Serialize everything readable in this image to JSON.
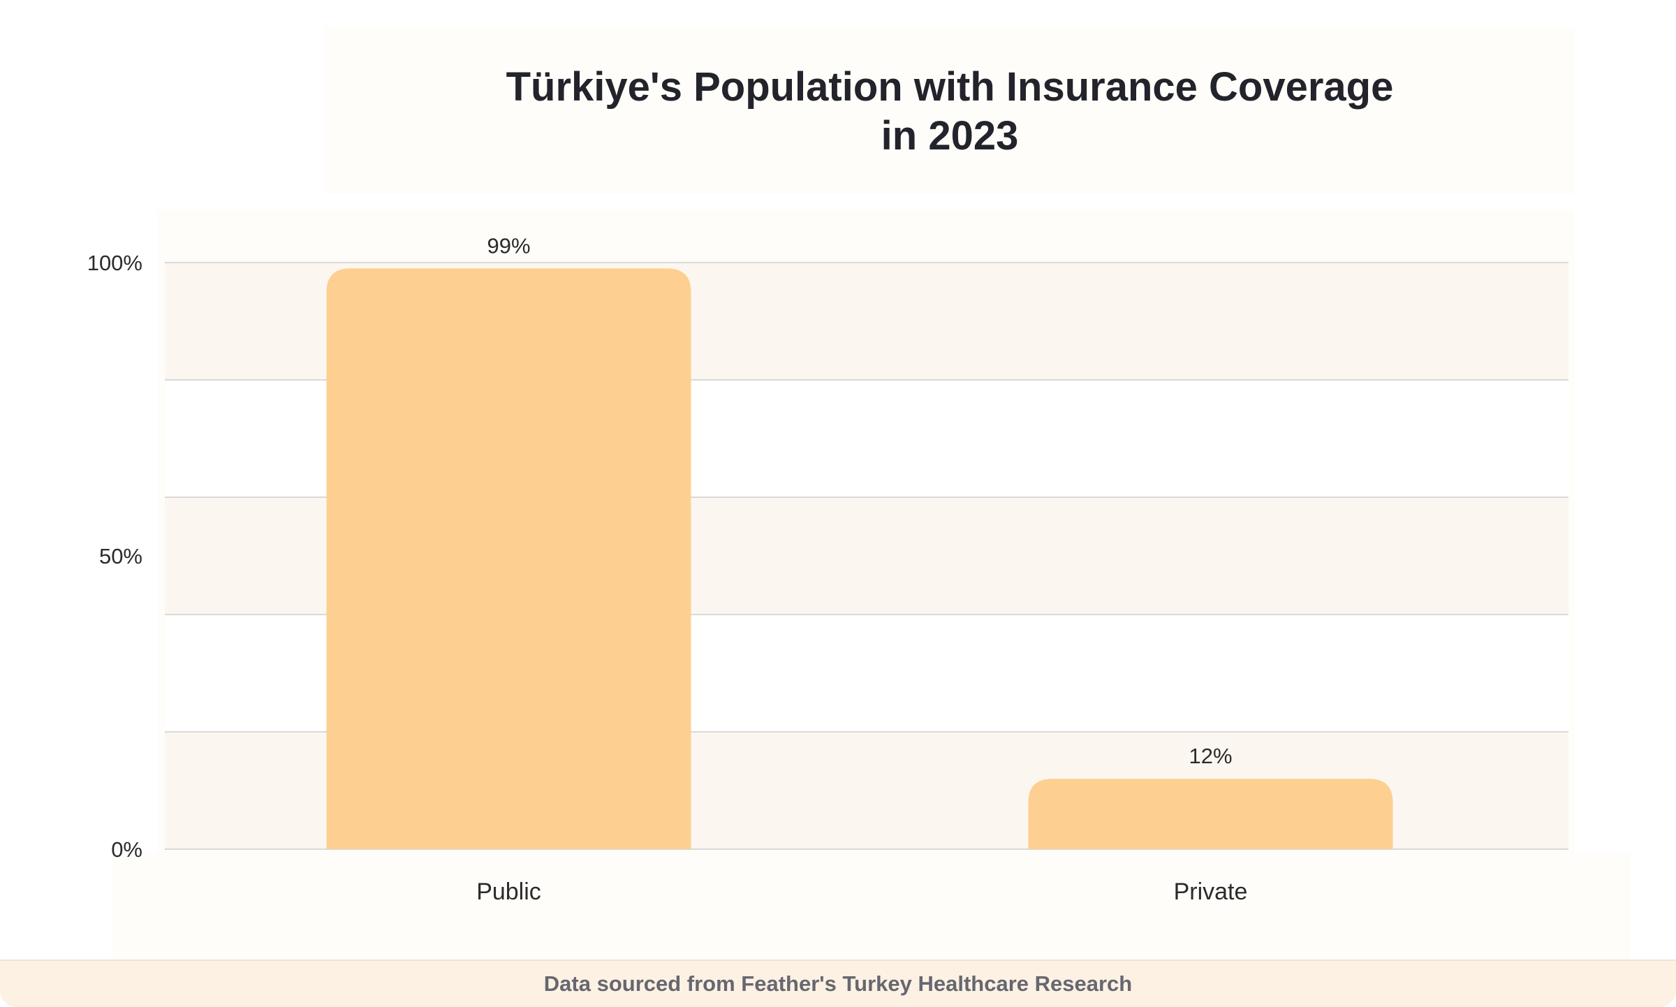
{
  "chart_data": {
    "type": "bar",
    "title": [
      "Türkiye's Population with Insurance Coverage",
      "in 2023"
    ],
    "categories": [
      "Public",
      "Private"
    ],
    "values": [
      99,
      12
    ],
    "data_labels": [
      "99%",
      "12%"
    ],
    "yticks": [
      {
        "value": 100,
        "label": "100%"
      },
      {
        "value": 50,
        "label": "50%"
      },
      {
        "value": 0,
        "label": "0%"
      }
    ],
    "gridlines": [
      0,
      20,
      40,
      60,
      80,
      100
    ],
    "ylim": [
      0,
      100
    ],
    "xlabel": "",
    "ylabel": "",
    "grid": true,
    "legend": "none",
    "bar_color": "#fdcf90",
    "band_color": "#fbf7f0"
  },
  "footer": {
    "source_text": "Data sourced from Feather's Turkey Healthcare Research"
  }
}
